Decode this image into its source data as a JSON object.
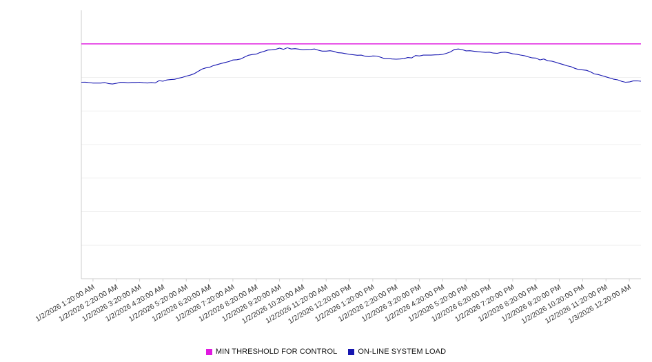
{
  "chart_data": {
    "type": "line",
    "title": "",
    "xlabel": "",
    "ylabel": "",
    "ylim": [
      0,
      100
    ],
    "grid": true,
    "grid_divisions": 8,
    "grid_color": "#efefef",
    "axis_color": "#cccccc",
    "background": "#ffffff",
    "legend_position": "bottom-center",
    "categories": [
      "1/2/2026 1:20:00 AM",
      "1/2/2026 2:20:00 AM",
      "1/2/2026 3:20:00 AM",
      "1/2/2026 4:20:00 AM",
      "1/2/2026 5:20:00 AM",
      "1/2/2026 6:20:00 AM",
      "1/2/2026 7:20:00 AM",
      "1/2/2026 8:20:00 AM",
      "1/2/2026 9:20:00 AM",
      "1/2/2026 10:20:00 AM",
      "1/2/2026 11:20:00 AM",
      "1/2/2026 12:20:00 PM",
      "1/2/2026 1:20:00 PM",
      "1/2/2026 2:20:00 PM",
      "1/2/2026 3:20:00 PM",
      "1/2/2026 4:20:00 PM",
      "1/2/2026 5:20:00 PM",
      "1/2/2026 6:20:00 PM",
      "1/2/2026 7:20:00 PM",
      "1/2/2026 8:20:00 PM",
      "1/2/2026 9:20:00 PM",
      "1/2/2026 10:20:00 PM",
      "1/2/2026 11:20:00 PM",
      "1/3/2026 12:20:00 AM"
    ],
    "series": [
      {
        "name": "MIN THRESHOLD FOR CONTROL",
        "type": "threshold",
        "color": "#e019e0",
        "value": 87.5
      },
      {
        "name": "ON-LINE SYSTEM LOAD",
        "type": "line",
        "color": "#1616b0",
        "sample_interval": "30 min, spanning full x-axis from before first to after last labeled tick",
        "values": [
          73.2,
          72.9,
          73.1,
          72.8,
          73.0,
          73.2,
          73.1,
          73.6,
          74.3,
          75.5,
          77.2,
          78.8,
          80.2,
          81.5,
          82.6,
          83.7,
          85.2,
          85.9,
          85.6,
          85.3,
          85.6,
          84.8,
          84.2,
          83.6,
          83.3,
          83.0,
          82.0,
          81.8,
          82.4,
          83.0,
          83.3,
          83.6,
          85.4,
          84.9,
          84.6,
          84.4,
          84.3,
          83.8,
          83.1,
          82.2,
          81.2,
          80.2,
          79.0,
          77.8,
          76.3,
          75.2,
          74.1,
          73.3,
          73.6
        ]
      }
    ]
  }
}
